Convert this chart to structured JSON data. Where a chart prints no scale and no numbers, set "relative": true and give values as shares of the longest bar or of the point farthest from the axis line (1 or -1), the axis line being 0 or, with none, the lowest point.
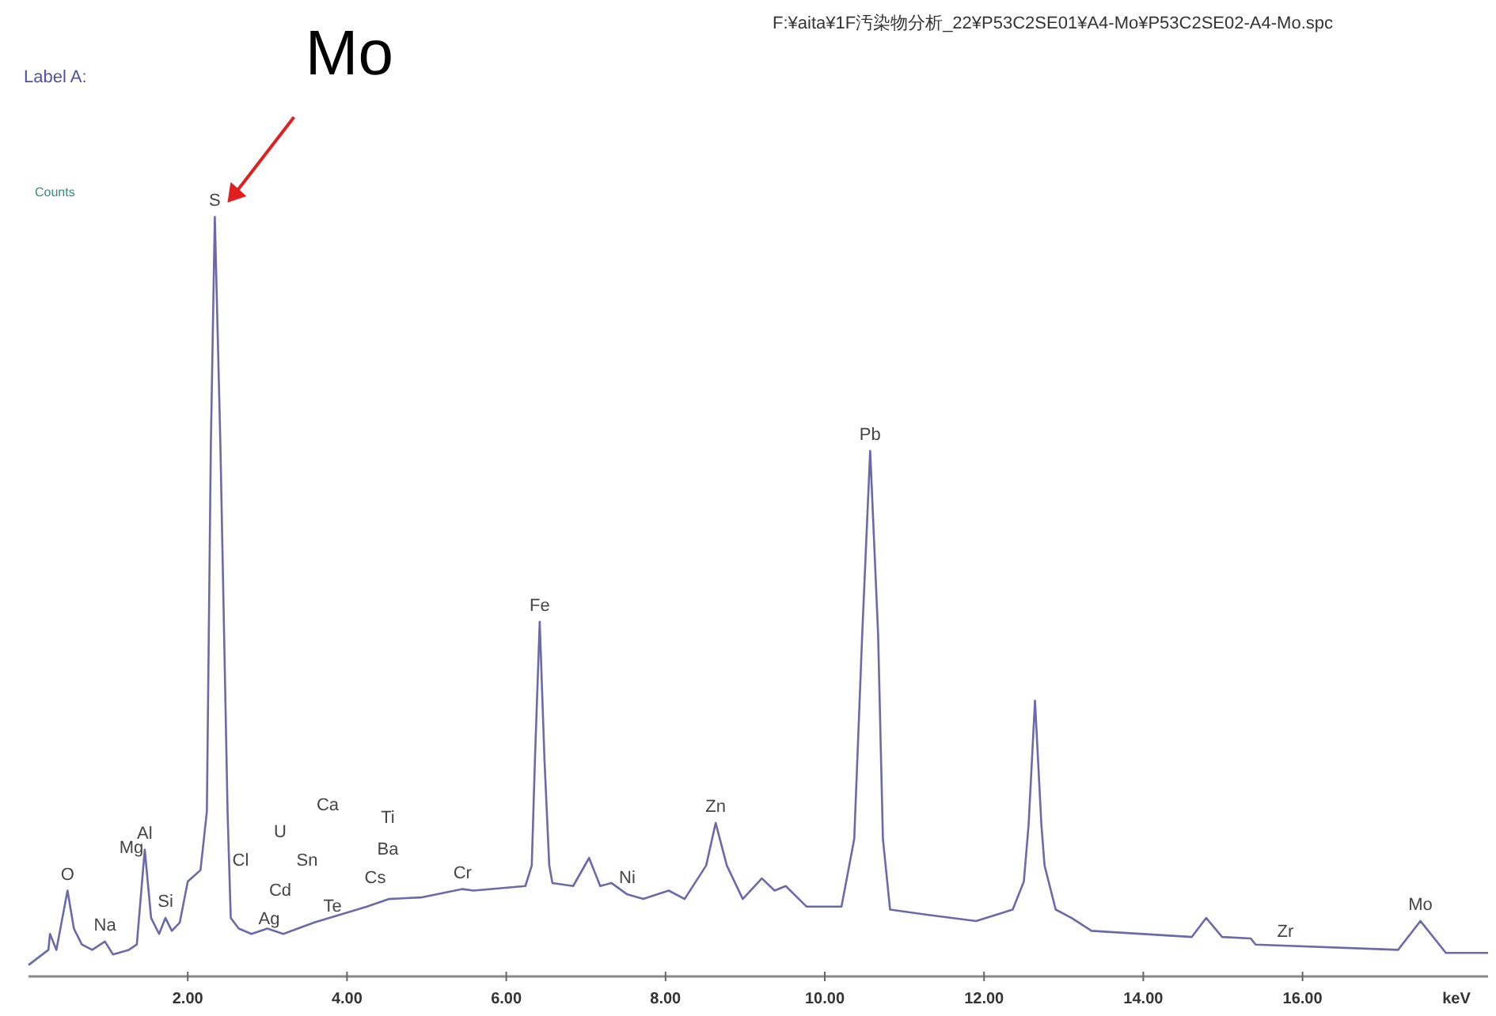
{
  "chart_data": {
    "type": "line",
    "relative": true,
    "title": "F:¥aita¥1F汚染物分析_22¥P53C2SE01¥A4-Mo¥P53C2SE02-A4-Mo.spc",
    "ylabel": "Counts",
    "xlabel": "keV",
    "xlim": [
      0,
      18.33
    ],
    "xticks": [
      {
        "value": 2,
        "label": "2.00"
      },
      {
        "value": 4,
        "label": "4.00"
      },
      {
        "value": 6,
        "label": "6.00"
      },
      {
        "value": 8,
        "label": "8.00"
      },
      {
        "value": 10,
        "label": "10.00"
      },
      {
        "value": 12,
        "label": "12.00"
      },
      {
        "value": 14,
        "label": "14.00"
      },
      {
        "value": 16,
        "label": "16.00"
      }
    ],
    "line_style": "solid",
    "series": [
      {
        "color": "#6a6aa8",
        "x": [
          0.0,
          0.25,
          0.27,
          0.35,
          0.49,
          0.57,
          0.67,
          0.8,
          0.96,
          1.06,
          1.26,
          1.36,
          1.46,
          1.54,
          1.64,
          1.72,
          1.8,
          1.9,
          2.0,
          2.16,
          2.24,
          2.29,
          2.34,
          2.41,
          2.5,
          2.54,
          2.64,
          2.8,
          3.0,
          3.2,
          3.59,
          4.25,
          4.53,
          4.93,
          5.45,
          5.59,
          6.24,
          6.32,
          6.36,
          6.42,
          6.48,
          6.54,
          6.58,
          6.84,
          7.04,
          7.18,
          7.32,
          7.52,
          7.72,
          8.04,
          8.24,
          8.51,
          8.63,
          8.77,
          8.97,
          9.21,
          9.37,
          9.51,
          9.77,
          10.21,
          10.37,
          10.47,
          10.57,
          10.67,
          10.73,
          10.82,
          11.3,
          11.9,
          12.36,
          12.5,
          12.56,
          12.64,
          12.72,
          12.76,
          12.9,
          13.1,
          13.35,
          14.61,
          14.79,
          14.99,
          15.35,
          15.41,
          17.2,
          17.48,
          17.8,
          18.33
        ],
        "values": [
          0.015,
          0.035,
          0.056,
          0.035,
          0.113,
          0.063,
          0.042,
          0.035,
          0.046,
          0.029,
          0.035,
          0.042,
          0.167,
          0.077,
          0.056,
          0.077,
          0.06,
          0.071,
          0.125,
          0.14,
          0.217,
          0.7,
          1.0,
          0.7,
          0.217,
          0.077,
          0.063,
          0.056,
          0.063,
          0.056,
          0.071,
          0.092,
          0.102,
          0.104,
          0.115,
          0.113,
          0.119,
          0.146,
          0.285,
          0.467,
          0.285,
          0.146,
          0.123,
          0.119,
          0.156,
          0.119,
          0.123,
          0.108,
          0.102,
          0.113,
          0.102,
          0.146,
          0.202,
          0.146,
          0.102,
          0.129,
          0.113,
          0.119,
          0.092,
          0.092,
          0.181,
          0.45,
          0.692,
          0.45,
          0.181,
          0.088,
          0.081,
          0.073,
          0.088,
          0.125,
          0.2,
          0.363,
          0.2,
          0.146,
          0.088,
          0.077,
          0.06,
          0.052,
          0.077,
          0.052,
          0.05,
          0.042,
          0.035,
          0.073,
          0.031,
          0.031
        ]
      }
    ],
    "annotations": [
      "Label A:",
      "Mg",
      "Cl",
      "Ag",
      "Cd",
      "U",
      "Sn",
      "Ca",
      "Te",
      "Cs",
      "Ba",
      "Ti",
      "Zr",
      {
        "text": "Mo",
        "x": 2.34,
        "y": 1.0
      },
      {
        "text": "S",
        "x": 2.34,
        "y": 1.0
      },
      {
        "text": "O",
        "x": 0.49,
        "y": 0.113
      },
      {
        "text": "Na",
        "x": 0.96,
        "y": 0.046
      },
      {
        "text": "Al",
        "x": 1.46,
        "y": 0.167
      },
      {
        "text": "Si",
        "x": 1.72,
        "y": 0.077
      },
      {
        "text": "Cr",
        "x": 5.45,
        "y": 0.115
      },
      {
        "text": "Fe",
        "x": 6.42,
        "y": 0.467
      },
      {
        "text": "Ni",
        "x": 7.52,
        "y": 0.108
      },
      {
        "text": "Zn",
        "x": 8.63,
        "y": 0.202
      },
      {
        "text": "Pb",
        "x": 10.57,
        "y": 0.692
      },
      {
        "text": "Mo",
        "x": 17.48,
        "y": 0.073
      }
    ]
  }
}
